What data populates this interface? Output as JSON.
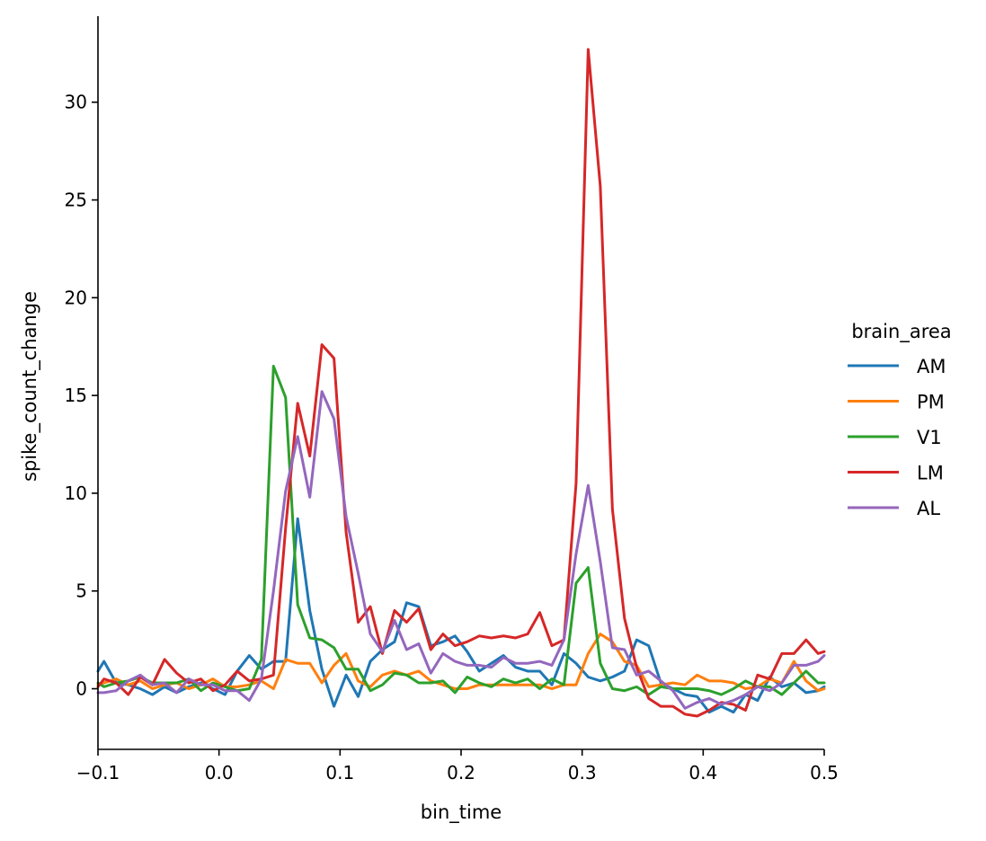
{
  "chart_data": {
    "type": "line",
    "title": "",
    "xlabel": "bin_time",
    "ylabel": "spike_count_change",
    "xlim": [
      -0.1,
      0.5
    ],
    "ylim": [
      -3.1,
      34.4
    ],
    "x_ticks": [
      -0.1,
      0.0,
      0.1,
      0.2,
      0.3,
      0.4,
      0.5
    ],
    "x_tick_labels": [
      "−0.1",
      "0.0",
      "0.1",
      "0.2",
      "0.3",
      "0.4",
      "0.5"
    ],
    "y_ticks": [
      0,
      5,
      10,
      15,
      20,
      25,
      30
    ],
    "y_tick_labels": [
      "0",
      "5",
      "10",
      "15",
      "20",
      "25",
      "30"
    ],
    "grid": false,
    "legend_title": "brain_area",
    "legend_position": "right",
    "x": [
      -0.1,
      -0.095,
      -0.085,
      -0.075,
      -0.065,
      -0.055,
      -0.045,
      -0.035,
      -0.025,
      -0.015,
      -0.005,
      0.005,
      0.015,
      0.025,
      0.035,
      0.045,
      0.055,
      0.065,
      0.075,
      0.085,
      0.095,
      0.105,
      0.115,
      0.125,
      0.135,
      0.145,
      0.155,
      0.165,
      0.175,
      0.185,
      0.195,
      0.205,
      0.215,
      0.225,
      0.235,
      0.245,
      0.255,
      0.265,
      0.275,
      0.285,
      0.295,
      0.305,
      0.315,
      0.325,
      0.335,
      0.345,
      0.355,
      0.365,
      0.375,
      0.385,
      0.395,
      0.405,
      0.415,
      0.425,
      0.435,
      0.445,
      0.455,
      0.465,
      0.475,
      0.485,
      0.495,
      0.5
    ],
    "series": [
      {
        "name": "AM",
        "color": "#1f77b4",
        "values": [
          0.9,
          1.4,
          0.3,
          0.2,
          0.0,
          -0.3,
          0.1,
          -0.2,
          0.1,
          0.3,
          0.0,
          -0.3,
          0.9,
          1.7,
          1.0,
          1.4,
          1.4,
          8.7,
          4.0,
          1.0,
          -0.9,
          0.7,
          -0.4,
          1.4,
          2.0,
          2.4,
          4.4,
          4.2,
          2.2,
          2.4,
          2.7,
          1.9,
          0.9,
          1.3,
          1.7,
          1.1,
          0.9,
          0.9,
          0.2,
          1.8,
          1.3,
          0.6,
          0.4,
          0.6,
          0.9,
          2.5,
          2.2,
          0.3,
          0.0,
          -0.3,
          -0.4,
          -1.2,
          -0.9,
          -1.2,
          -0.3,
          -0.6,
          0.6,
          0.1,
          0.3,
          -0.2,
          -0.1,
          0.1
        ]
      },
      {
        "name": "PM",
        "color": "#ff7f0e",
        "values": [
          0.2,
          0.3,
          0.5,
          0.2,
          0.4,
          0.0,
          0.2,
          0.3,
          0.0,
          0.2,
          0.5,
          0.1,
          0.1,
          0.2,
          0.4,
          0.0,
          1.5,
          1.3,
          1.3,
          0.3,
          1.2,
          1.8,
          0.4,
          0.1,
          0.7,
          0.9,
          0.7,
          0.9,
          0.4,
          0.2,
          0.0,
          0.0,
          0.2,
          0.2,
          0.2,
          0.2,
          0.2,
          0.2,
          0.0,
          0.2,
          0.2,
          1.8,
          2.8,
          2.4,
          1.4,
          1.2,
          0.1,
          0.2,
          0.3,
          0.2,
          0.7,
          0.4,
          0.4,
          0.3,
          0.0,
          0.1,
          0.5,
          0.3,
          1.4,
          0.4,
          -0.1,
          0.0
        ]
      },
      {
        "name": "V1",
        "color": "#2ca02c",
        "values": [
          0.3,
          0.1,
          0.3,
          0.4,
          0.6,
          0.3,
          0.3,
          0.3,
          0.5,
          -0.1,
          0.3,
          0.1,
          -0.1,
          0.0,
          1.5,
          16.5,
          14.9,
          4.3,
          2.6,
          2.5,
          2.1,
          1.0,
          1.0,
          -0.1,
          0.2,
          0.8,
          0.7,
          0.3,
          0.3,
          0.4,
          -0.2,
          0.6,
          0.3,
          0.1,
          0.5,
          0.3,
          0.5,
          0.0,
          0.5,
          0.2,
          5.4,
          6.2,
          1.3,
          0.0,
          -0.1,
          0.1,
          -0.3,
          0.1,
          0.0,
          0.0,
          0.0,
          -0.1,
          -0.3,
          0.0,
          0.4,
          0.1,
          0.1,
          -0.3,
          0.3,
          0.9,
          0.3,
          0.3
        ]
      },
      {
        "name": "LM",
        "color": "#d62728",
        "values": [
          0.1,
          0.5,
          0.3,
          -0.3,
          0.6,
          0.2,
          1.5,
          0.8,
          0.3,
          0.5,
          -0.1,
          0.2,
          0.9,
          0.4,
          0.5,
          0.7,
          8.2,
          14.6,
          11.9,
          17.6,
          16.9,
          8.0,
          3.4,
          4.2,
          1.8,
          4.0,
          3.4,
          4.1,
          2.0,
          2.8,
          2.2,
          2.4,
          2.7,
          2.6,
          2.7,
          2.6,
          2.8,
          3.9,
          2.2,
          2.5,
          10.5,
          32.7,
          25.7,
          9.2,
          3.6,
          1.1,
          -0.5,
          -0.9,
          -0.9,
          -1.3,
          -1.4,
          -1.1,
          -0.7,
          -0.8,
          -1.1,
          0.7,
          0.5,
          1.8,
          1.8,
          2.5,
          1.8,
          1.9
        ]
      },
      {
        "name": "AL",
        "color": "#9467bd",
        "values": [
          -0.2,
          -0.2,
          -0.1,
          0.4,
          0.7,
          0.2,
          0.3,
          -0.2,
          0.5,
          0.2,
          0.2,
          -0.1,
          -0.1,
          -0.6,
          0.5,
          5.0,
          10.1,
          12.9,
          9.8,
          15.2,
          13.8,
          8.8,
          5.9,
          2.8,
          1.9,
          3.5,
          2.0,
          2.3,
          0.8,
          1.8,
          1.4,
          1.2,
          1.2,
          1.1,
          1.6,
          1.3,
          1.3,
          1.4,
          1.2,
          2.5,
          6.9,
          10.4,
          6.5,
          2.1,
          2.0,
          0.7,
          0.9,
          0.4,
          -0.1,
          -1.0,
          -0.7,
          -0.5,
          -0.8,
          -0.6,
          -0.3,
          0.1,
          -0.1,
          0.3,
          1.2,
          1.2,
          1.4,
          1.7
        ]
      }
    ]
  }
}
